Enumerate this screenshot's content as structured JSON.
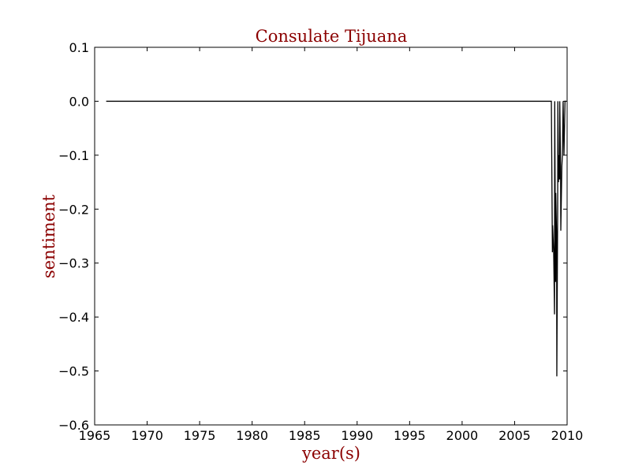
{
  "colors": {
    "title": "#8b0000",
    "line": "#000000",
    "axes": "#000000",
    "background": "#ffffff"
  },
  "chart_data": {
    "type": "line",
    "title": "Consulate Tijuana",
    "xlabel": "year(s)",
    "ylabel": "sentiment",
    "xlim": [
      1965,
      2010
    ],
    "ylim": [
      -0.6,
      0.1
    ],
    "grid": false,
    "legend": "none",
    "xticks": [
      1965,
      1970,
      1975,
      1980,
      1985,
      1990,
      1995,
      2000,
      2005,
      2010
    ],
    "xtick_labels": [
      "1965",
      "1970",
      "1975",
      "1980",
      "1985",
      "1990",
      "1995",
      "2000",
      "2005",
      "2010"
    ],
    "yticks": [
      0.1,
      0.0,
      -0.1,
      -0.2,
      -0.3,
      -0.4,
      -0.5,
      -0.6
    ],
    "ytick_labels": [
      "0.1",
      "0.0",
      "−0.1",
      "−0.2",
      "−0.3",
      "−0.4",
      "−0.5",
      "−0.6"
    ],
    "series": [
      {
        "x": [
          1966.1,
          2008.5,
          2008.6,
          2008.62,
          2008.72,
          2008.8,
          2008.82,
          2008.9,
          2008.92,
          2009.0,
          2009.02,
          2009.1,
          2009.12,
          2009.18,
          2009.2,
          2009.28,
          2009.3,
          2009.38,
          2009.4,
          2009.5,
          2009.55,
          2009.62,
          2009.7,
          2009.8,
          2009.9
        ],
        "y": [
          0.0,
          0.0,
          -0.28,
          -0.23,
          -0.28,
          -0.395,
          0.0,
          -0.335,
          -0.17,
          -0.25,
          -0.51,
          -0.2,
          0.0,
          -0.15,
          -0.1,
          -0.145,
          0.0,
          -0.13,
          -0.24,
          -0.12,
          -0.1,
          0.0,
          -0.1,
          0.0,
          0.0
        ]
      }
    ]
  }
}
